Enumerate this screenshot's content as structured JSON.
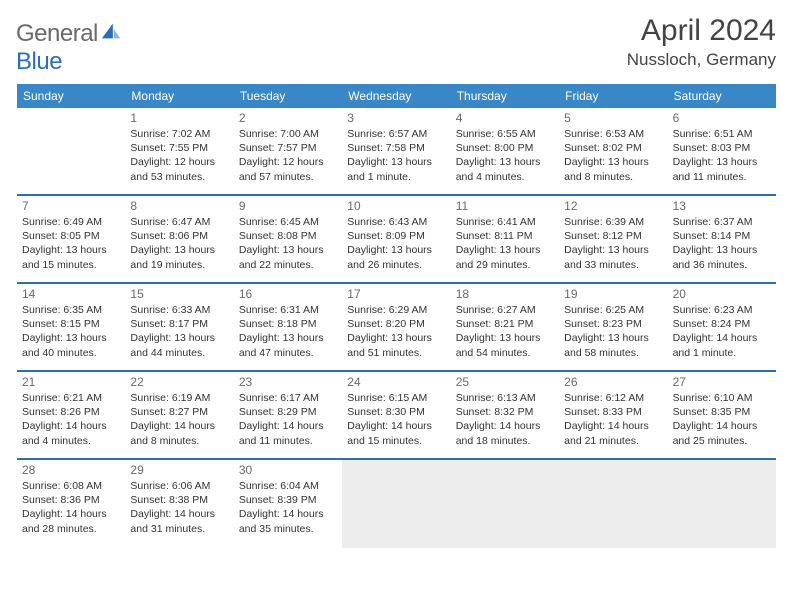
{
  "brand": {
    "part1": "General",
    "part2": "Blue"
  },
  "header": {
    "title": "April 2024",
    "location": "Nussloch, Germany"
  },
  "colors": {
    "header_bg": "#3a87c8",
    "header_text": "#ffffff",
    "divider": "#2a6fb5",
    "text": "#333333",
    "muted": "#6a6a6a",
    "trailing_bg": "#ededed",
    "page_bg": "#ffffff"
  },
  "typography": {
    "title_fontsize": 30,
    "location_fontsize": 17,
    "dow_fontsize": 12,
    "cell_fontsize": 10.5
  },
  "dow": [
    "Sunday",
    "Monday",
    "Tuesday",
    "Wednesday",
    "Thursday",
    "Friday",
    "Saturday"
  ],
  "layout": {
    "first_weekday_index": 1,
    "days_in_month": 30,
    "rows": 5,
    "cols": 7
  },
  "days": {
    "1": {
      "sunrise": "7:02 AM",
      "sunset": "7:55 PM",
      "daylight": "12 hours and 53 minutes."
    },
    "2": {
      "sunrise": "7:00 AM",
      "sunset": "7:57 PM",
      "daylight": "12 hours and 57 minutes."
    },
    "3": {
      "sunrise": "6:57 AM",
      "sunset": "7:58 PM",
      "daylight": "13 hours and 1 minute."
    },
    "4": {
      "sunrise": "6:55 AM",
      "sunset": "8:00 PM",
      "daylight": "13 hours and 4 minutes."
    },
    "5": {
      "sunrise": "6:53 AM",
      "sunset": "8:02 PM",
      "daylight": "13 hours and 8 minutes."
    },
    "6": {
      "sunrise": "6:51 AM",
      "sunset": "8:03 PM",
      "daylight": "13 hours and 11 minutes."
    },
    "7": {
      "sunrise": "6:49 AM",
      "sunset": "8:05 PM",
      "daylight": "13 hours and 15 minutes."
    },
    "8": {
      "sunrise": "6:47 AM",
      "sunset": "8:06 PM",
      "daylight": "13 hours and 19 minutes."
    },
    "9": {
      "sunrise": "6:45 AM",
      "sunset": "8:08 PM",
      "daylight": "13 hours and 22 minutes."
    },
    "10": {
      "sunrise": "6:43 AM",
      "sunset": "8:09 PM",
      "daylight": "13 hours and 26 minutes."
    },
    "11": {
      "sunrise": "6:41 AM",
      "sunset": "8:11 PM",
      "daylight": "13 hours and 29 minutes."
    },
    "12": {
      "sunrise": "6:39 AM",
      "sunset": "8:12 PM",
      "daylight": "13 hours and 33 minutes."
    },
    "13": {
      "sunrise": "6:37 AM",
      "sunset": "8:14 PM",
      "daylight": "13 hours and 36 minutes."
    },
    "14": {
      "sunrise": "6:35 AM",
      "sunset": "8:15 PM",
      "daylight": "13 hours and 40 minutes."
    },
    "15": {
      "sunrise": "6:33 AM",
      "sunset": "8:17 PM",
      "daylight": "13 hours and 44 minutes."
    },
    "16": {
      "sunrise": "6:31 AM",
      "sunset": "8:18 PM",
      "daylight": "13 hours and 47 minutes."
    },
    "17": {
      "sunrise": "6:29 AM",
      "sunset": "8:20 PM",
      "daylight": "13 hours and 51 minutes."
    },
    "18": {
      "sunrise": "6:27 AM",
      "sunset": "8:21 PM",
      "daylight": "13 hours and 54 minutes."
    },
    "19": {
      "sunrise": "6:25 AM",
      "sunset": "8:23 PM",
      "daylight": "13 hours and 58 minutes."
    },
    "20": {
      "sunrise": "6:23 AM",
      "sunset": "8:24 PM",
      "daylight": "14 hours and 1 minute."
    },
    "21": {
      "sunrise": "6:21 AM",
      "sunset": "8:26 PM",
      "daylight": "14 hours and 4 minutes."
    },
    "22": {
      "sunrise": "6:19 AM",
      "sunset": "8:27 PM",
      "daylight": "14 hours and 8 minutes."
    },
    "23": {
      "sunrise": "6:17 AM",
      "sunset": "8:29 PM",
      "daylight": "14 hours and 11 minutes."
    },
    "24": {
      "sunrise": "6:15 AM",
      "sunset": "8:30 PM",
      "daylight": "14 hours and 15 minutes."
    },
    "25": {
      "sunrise": "6:13 AM",
      "sunset": "8:32 PM",
      "daylight": "14 hours and 18 minutes."
    },
    "26": {
      "sunrise": "6:12 AM",
      "sunset": "8:33 PM",
      "daylight": "14 hours and 21 minutes."
    },
    "27": {
      "sunrise": "6:10 AM",
      "sunset": "8:35 PM",
      "daylight": "14 hours and 25 minutes."
    },
    "28": {
      "sunrise": "6:08 AM",
      "sunset": "8:36 PM",
      "daylight": "14 hours and 28 minutes."
    },
    "29": {
      "sunrise": "6:06 AM",
      "sunset": "8:38 PM",
      "daylight": "14 hours and 31 minutes."
    },
    "30": {
      "sunrise": "6:04 AM",
      "sunset": "8:39 PM",
      "daylight": "14 hours and 35 minutes."
    }
  },
  "labels": {
    "sunrise": "Sunrise:",
    "sunset": "Sunset:",
    "daylight": "Daylight:"
  }
}
